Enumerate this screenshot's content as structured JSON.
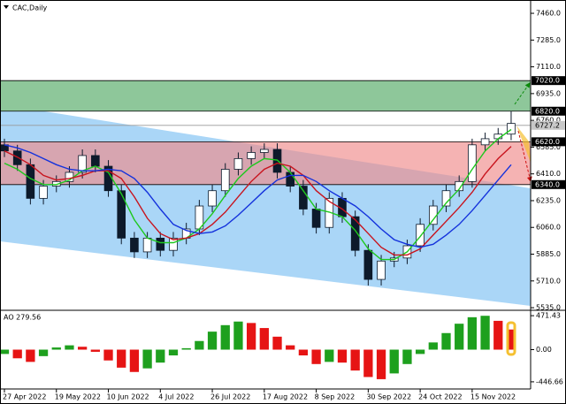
{
  "chart_data": [
    {
      "type": "candlestick",
      "title": "CAC,Daily",
      "open": [
        6600,
        6560,
        6470,
        6250,
        6330,
        6360,
        6420,
        6530,
        6460,
        6300,
        5990,
        5900,
        5990,
        5910,
        5990,
        6050,
        6200,
        6300,
        6440,
        6510,
        6550,
        6570,
        6420,
        6330,
        6180,
        6060,
        6250,
        6130,
        5910,
        5720,
        5840,
        5860,
        5940,
        6080,
        6200,
        6300,
        6360,
        6600,
        6640,
        6670
      ],
      "high": [
        6640,
        6600,
        6510,
        6370,
        6400,
        6460,
        6570,
        6570,
        6500,
        6340,
        6030,
        6030,
        6030,
        6030,
        6090,
        6240,
        6340,
        6480,
        6550,
        6590,
        6610,
        6610,
        6460,
        6370,
        6220,
        6290,
        6290,
        6170,
        5950,
        5880,
        5900,
        5980,
        6120,
        6240,
        6340,
        6400,
        6640,
        6680,
        6710,
        6820
      ],
      "low": [
        6520,
        6430,
        6210,
        6210,
        6290,
        6320,
        6380,
        6420,
        6260,
        5950,
        5860,
        5860,
        5870,
        5870,
        5950,
        6010,
        6160,
        6260,
        6400,
        6470,
        6510,
        6380,
        6290,
        6140,
        6020,
        6020,
        6090,
        5870,
        5680,
        5680,
        5800,
        5820,
        5900,
        6040,
        6160,
        6260,
        6320,
        6560,
        6600,
        6630
      ],
      "close": [
        6560,
        6470,
        6250,
        6330,
        6360,
        6420,
        6530,
        6460,
        6300,
        5990,
        5900,
        5990,
        5910,
        5990,
        6050,
        6200,
        6300,
        6440,
        6510,
        6550,
        6570,
        6420,
        6330,
        6180,
        6060,
        6250,
        6130,
        5910,
        5720,
        5840,
        5860,
        5940,
        6080,
        6200,
        6300,
        6360,
        6600,
        6640,
        6670,
        6740
      ],
      "up_color": "#ffffff",
      "down_color": "#0d1a2b",
      "edge_color": "#0d1a2b",
      "series": [
        {
          "color": "#1ec81e",
          "values": [
            6480,
            6440,
            6380,
            6340,
            6340,
            6370,
            6430,
            6460,
            6420,
            6280,
            6110,
            5990,
            5960,
            5960,
            5990,
            6050,
            6150,
            6270,
            6380,
            6460,
            6510,
            6500,
            6420,
            6300,
            6180,
            6160,
            6130,
            6040,
            5920,
            5850,
            5850,
            5900,
            6000,
            6110,
            6220,
            6310,
            6440,
            6560,
            6640,
            6700
          ]
        },
        {
          "color": "#c8141e",
          "values": [
            6560,
            6520,
            6470,
            6400,
            6370,
            6380,
            6400,
            6430,
            6430,
            6380,
            6260,
            6120,
            6020,
            5980,
            5990,
            6020,
            6080,
            6160,
            6260,
            6360,
            6440,
            6480,
            6460,
            6400,
            6300,
            6230,
            6180,
            6110,
            6020,
            5930,
            5880,
            5880,
            5920,
            6010,
            6100,
            6190,
            6290,
            6410,
            6510,
            6590
          ]
        },
        {
          "color": "#1432dc",
          "values": [
            6600,
            6580,
            6550,
            6510,
            6470,
            6440,
            6430,
            6430,
            6440,
            6430,
            6380,
            6290,
            6180,
            6080,
            6040,
            6020,
            6030,
            6070,
            6140,
            6220,
            6300,
            6370,
            6400,
            6400,
            6360,
            6300,
            6250,
            6200,
            6130,
            6050,
            5980,
            5950,
            5930,
            5950,
            6010,
            6080,
            6170,
            6270,
            6370,
            6470
          ]
        }
      ],
      "xlim": [
        -0.34,
        40.5
      ],
      "xticks": [
        {
          "value": 0,
          "label": "27 Apr 2022"
        },
        {
          "value": 4,
          "label": "19 May 2022"
        },
        {
          "value": 8,
          "label": "10 Jun 2022"
        },
        {
          "value": 12,
          "label": "4 Jul 2022"
        },
        {
          "value": 16,
          "label": "26 Jul 2022"
        },
        {
          "value": 20,
          "label": "17 Aug 2022"
        },
        {
          "value": 24,
          "label": "8 Sep 2022"
        },
        {
          "value": 28,
          "label": "30 Sep 2022"
        },
        {
          "value": 32,
          "label": "24 Oct 2022"
        },
        {
          "value": 36,
          "label": "15 Nov 2022"
        }
      ],
      "ylim": [
        5518,
        7547
      ],
      "yticks": [
        {
          "value": 7460,
          "label": "7460.0"
        },
        {
          "value": 7285,
          "label": "7285.0"
        },
        {
          "value": 7110,
          "label": "7110.0"
        },
        {
          "value": 6935,
          "label": "6935.0"
        },
        {
          "value": 6760,
          "label": "6760.0"
        },
        {
          "value": 6585,
          "label": "6585.0"
        },
        {
          "value": 6410,
          "label": "6410.0"
        },
        {
          "value": 6235,
          "label": "6235.0"
        },
        {
          "value": 6060,
          "label": "6060.0"
        },
        {
          "value": 5885,
          "label": "5885.0"
        },
        {
          "value": 5710,
          "label": "5710.0"
        },
        {
          "value": 5535,
          "label": "5535.0"
        }
      ],
      "levels": [
        {
          "value": 7020,
          "label": "7020.0",
          "box": "#000000"
        },
        {
          "value": 6820,
          "label": "6820.0",
          "box": "#000000"
        },
        {
          "value": 6727.2,
          "label": "6727.2",
          "box": "#c8c8c8"
        },
        {
          "value": 6620,
          "label": "6620.0",
          "box": "#000000"
        },
        {
          "value": 6340,
          "label": "6340.0",
          "box": "#000000"
        }
      ]
    },
    {
      "type": "bar",
      "title": "AO 279.56",
      "values": [
        -60,
        -120,
        -170,
        -90,
        30,
        60,
        40,
        -30,
        -150,
        -250,
        -310,
        -260,
        -180,
        -80,
        20,
        120,
        250,
        340,
        390,
        370,
        300,
        180,
        60,
        -80,
        -200,
        -170,
        -180,
        -290,
        -380,
        -410,
        -330,
        -200,
        -60,
        100,
        230,
        360,
        450,
        470,
        400,
        279.56
      ],
      "up_color": "#1ea01e",
      "down_color": "#e61414",
      "xlim": [
        -0.34,
        40.5
      ],
      "ylim": [
        -546,
        534
      ],
      "yticks": [
        {
          "value": 471.43,
          "label": "471.43"
        },
        {
          "value": 0,
          "label": "0.00"
        },
        {
          "value": -446.66,
          "label": "-446.66"
        }
      ]
    }
  ]
}
